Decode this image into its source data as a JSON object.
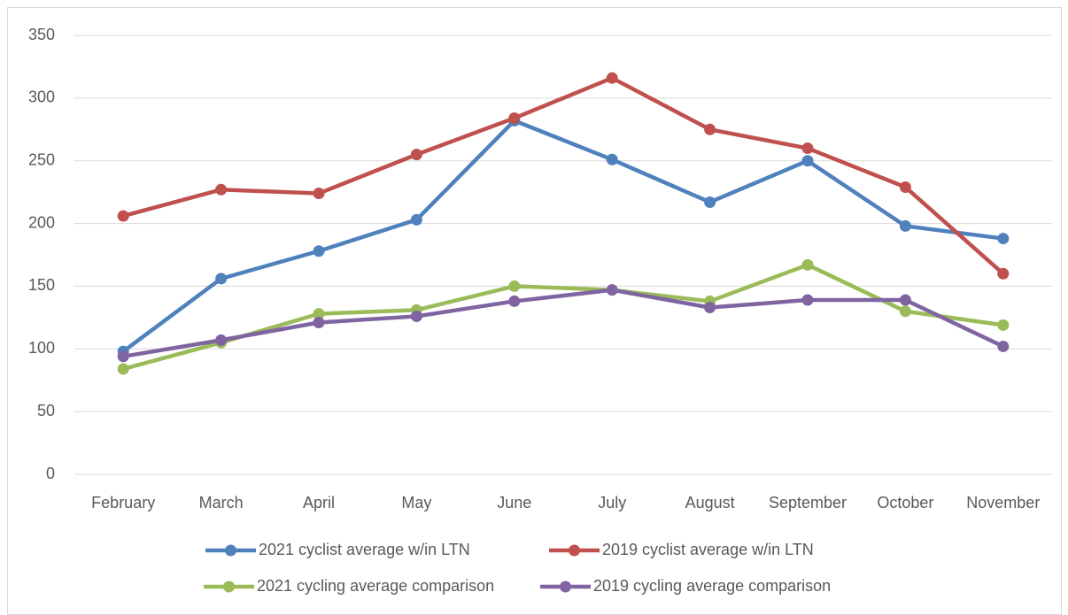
{
  "chart_data": {
    "type": "line",
    "categories": [
      "February",
      "March",
      "April",
      "May",
      "June",
      "July",
      "August",
      "September",
      "October",
      "November"
    ],
    "series": [
      {
        "name": "2021 cyclist average w/in LTN",
        "color": "#4f81bd",
        "values": [
          98,
          156,
          178,
          203,
          282,
          251,
          217,
          250,
          198,
          188
        ]
      },
      {
        "name": "2019 cyclist average w/in LTN",
        "color": "#c0504d",
        "values": [
          206,
          227,
          224,
          255,
          284,
          316,
          275,
          260,
          229,
          160
        ]
      },
      {
        "name": "2021 cycling average comparison",
        "color": "#9bbb59",
        "values": [
          84,
          105,
          128,
          131,
          150,
          147,
          138,
          167,
          130,
          119
        ]
      },
      {
        "name": "2019 cycling average comparison",
        "color": "#8064a2",
        "values": [
          94,
          107,
          121,
          126,
          138,
          147,
          133,
          139,
          139,
          102
        ]
      }
    ],
    "ylim": [
      0,
      350
    ],
    "yticks": [
      0,
      50,
      100,
      150,
      200,
      250,
      300,
      350
    ],
    "grid": true
  }
}
